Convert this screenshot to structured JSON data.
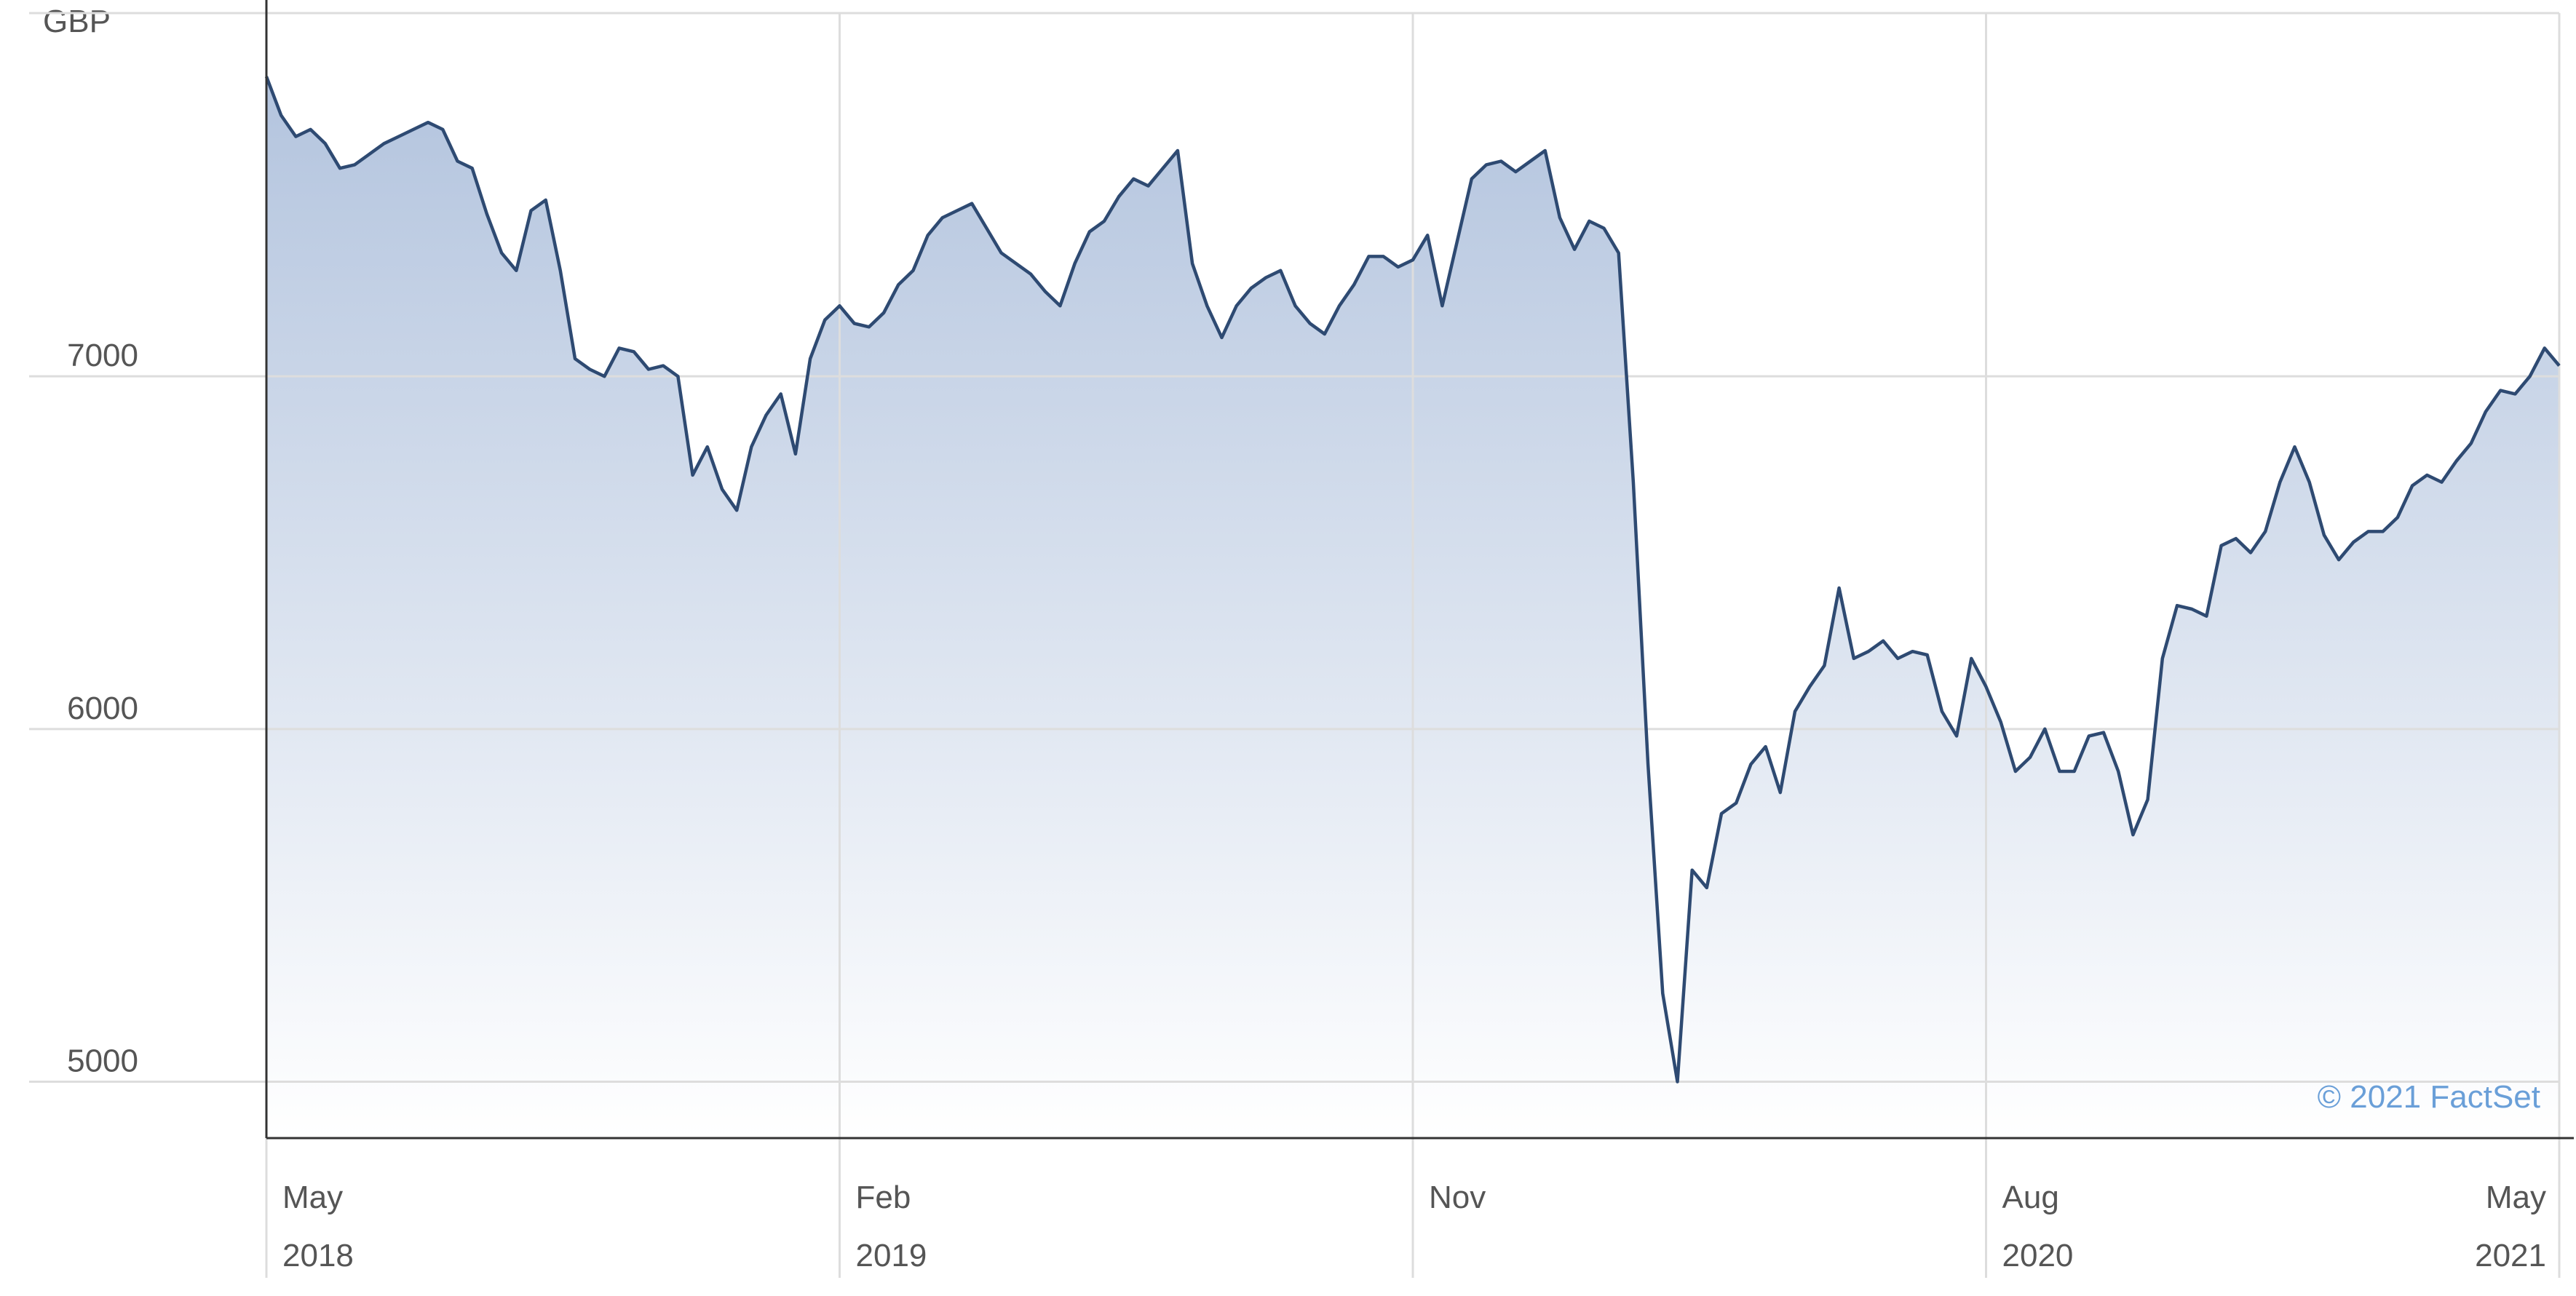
{
  "chart_data": {
    "type": "area",
    "y_unit": "GBP",
    "credit": "© 2021 FactSet",
    "categories": [
      [
        "May",
        "2018"
      ],
      null,
      null,
      null,
      null,
      null,
      null,
      null,
      null,
      null,
      null,
      null,
      null,
      null,
      null,
      null,
      null,
      null,
      null,
      null,
      null,
      null,
      null,
      null,
      null,
      null,
      null,
      null,
      null,
      null,
      null,
      null,
      null,
      null,
      null,
      null,
      null,
      null,
      null,
      [
        "Feb",
        "2019"
      ],
      null,
      null,
      null,
      null,
      null,
      null,
      null,
      null,
      null,
      null,
      null,
      null,
      null,
      null,
      null,
      null,
      null,
      null,
      null,
      null,
      null,
      null,
      null,
      null,
      null,
      null,
      null,
      null,
      null,
      null,
      null,
      null,
      null,
      null,
      null,
      null,
      null,
      null,
      [
        "Nov"
      ],
      null,
      null,
      null,
      null,
      null,
      null,
      null,
      null,
      null,
      null,
      null,
      null,
      null,
      null,
      null,
      null,
      null,
      null,
      null,
      null,
      null,
      null,
      null,
      null,
      null,
      null,
      null,
      null,
      null,
      null,
      null,
      null,
      null,
      null,
      null,
      null,
      null,
      null,
      [
        "Aug",
        "2020"
      ],
      null,
      null,
      null,
      null,
      null,
      null,
      null,
      null,
      null,
      null,
      null,
      null,
      null,
      null,
      null,
      null,
      null,
      null,
      null,
      null,
      null,
      null,
      null,
      null,
      null,
      null,
      null,
      null,
      null,
      null,
      null,
      null,
      null,
      null,
      null,
      null,
      null,
      null,
      [
        "May",
        "2021"
      ]
    ],
    "series": [
      {
        "color": "#2e4a72",
        "fill": "#b3c4de",
        "values": [
          7850,
          7740,
          7680,
          7700,
          7660,
          7590,
          7600,
          7630,
          7660,
          7680,
          7700,
          7720,
          7700,
          7610,
          7590,
          7460,
          7350,
          7300,
          7470,
          7500,
          7300,
          7050,
          7020,
          7000,
          7080,
          7070,
          7020,
          7030,
          7000,
          6720,
          6800,
          6680,
          6620,
          6800,
          6890,
          6950,
          6780,
          7050,
          7160,
          7200,
          7150,
          7140,
          7180,
          7260,
          7300,
          7400,
          7450,
          7470,
          7490,
          7420,
          7350,
          7320,
          7290,
          7240,
          7200,
          7320,
          7410,
          7440,
          7510,
          7560,
          7540,
          7590,
          7640,
          7320,
          7200,
          7110,
          7200,
          7250,
          7280,
          7300,
          7200,
          7150,
          7120,
          7200,
          7260,
          7340,
          7340,
          7310,
          7330,
          7400,
          7200,
          7380,
          7560,
          7600,
          7610,
          7580,
          7610,
          7640,
          7450,
          7360,
          7440,
          7420,
          7350,
          6700,
          5900,
          5250,
          5000,
          5600,
          5550,
          5760,
          5790,
          5900,
          5950,
          5820,
          6050,
          6120,
          6180,
          6400,
          6200,
          6220,
          6250,
          6200,
          6220,
          6210,
          6050,
          5980,
          6200,
          6120,
          6020,
          5880,
          5920,
          6000,
          5880,
          5880,
          5980,
          5990,
          5880,
          5700,
          5800,
          6200,
          6350,
          6340,
          6320,
          6520,
          6540,
          6500,
          6560,
          6700,
          6800,
          6700,
          6550,
          6480,
          6530,
          6560,
          6560,
          6600,
          6690,
          6720,
          6700,
          6760,
          6810,
          6900,
          6960,
          6950,
          7000,
          7080,
          7030
        ]
      }
    ],
    "ylim": [
      4840,
      8030
    ],
    "yticks": [
      5000,
      6000,
      7000
    ],
    "grid": true
  }
}
